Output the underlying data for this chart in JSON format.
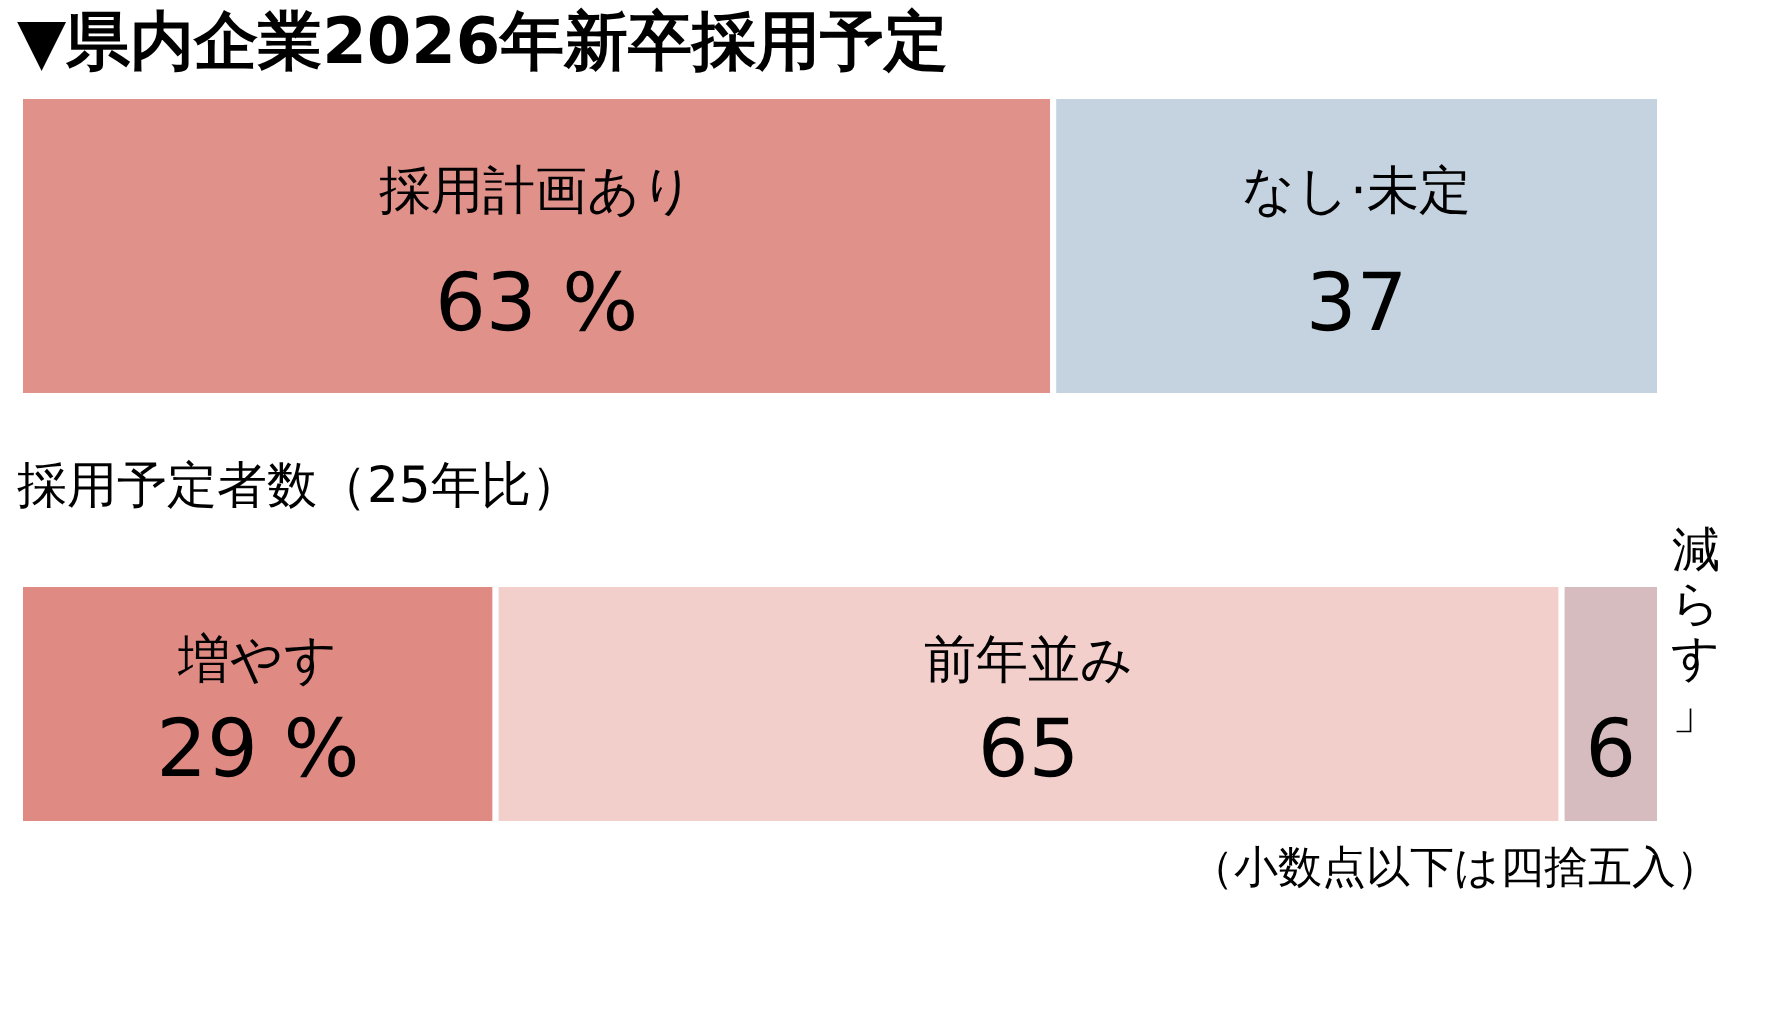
{
  "chart_data": [
    {
      "type": "bar",
      "orientation": "horizontal",
      "stacked": true,
      "title": "▼県内企業2026年新卒採用予定",
      "categories": [
        null
      ],
      "series": [
        {
          "name": "採用計画あり",
          "color": "#e0928a",
          "values": [
            63
          ],
          "value_labels": [
            "63 %"
          ]
        },
        {
          "name": "なし·未定",
          "color": "#c5d3e0",
          "values": [
            37
          ],
          "value_labels": [
            "37"
          ]
        }
      ]
    },
    {
      "type": "bar",
      "orientation": "horizontal",
      "stacked": true,
      "title": "採用予定者数（25年比）",
      "categories": [
        null
      ],
      "series": [
        {
          "name": "増やす",
          "color": "#e08a84",
          "values": [
            29
          ],
          "value_labels": [
            "29 %"
          ]
        },
        {
          "name": "前年並み",
          "color": "#f2cfcb",
          "values": [
            65
          ],
          "value_labels": [
            "65"
          ]
        },
        {
          "name": "減らす」",
          "color": "#d6bcbe",
          "values": [
            6
          ],
          "value_labels": [
            "6"
          ]
        }
      ],
      "annotations": [
        "（小数点以下は四捨五入）"
      ]
    }
  ]
}
